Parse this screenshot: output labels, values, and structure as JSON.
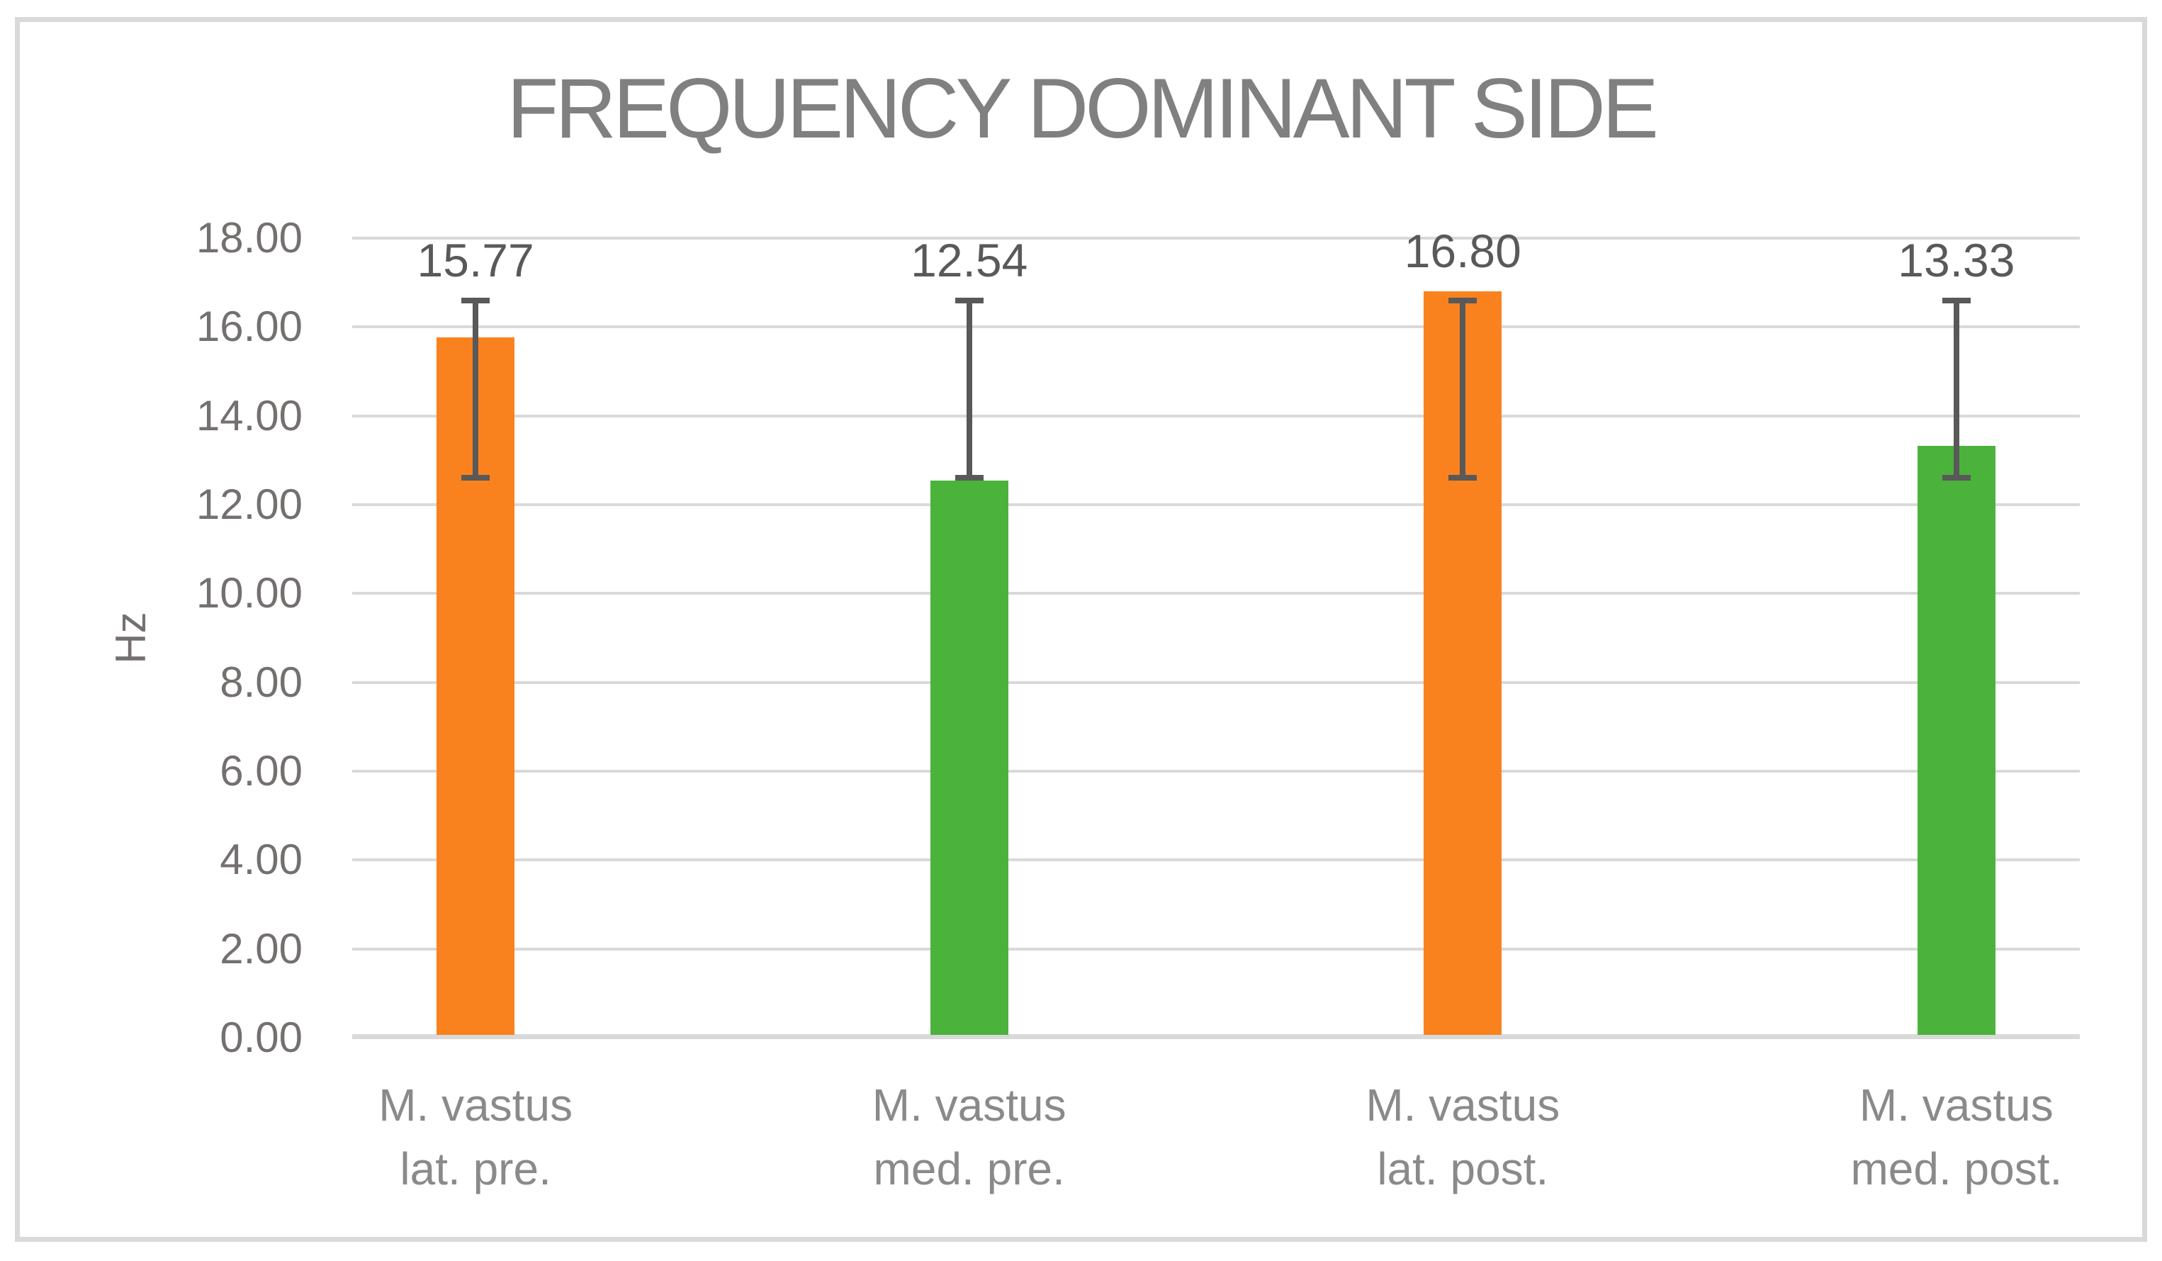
{
  "figure": {
    "background": "#FFFFFF",
    "border_color": "#D9D9D9"
  },
  "chart_data": {
    "type": "bar",
    "title": "FREQUENCY DOMINANT SIDE",
    "xlabel": "",
    "ylabel": "Hz",
    "ylim": [
      0,
      18
    ],
    "grid": true,
    "legend": false,
    "yticks": [
      {
        "v": 0,
        "label": "0.00"
      },
      {
        "v": 2,
        "label": "2.00"
      },
      {
        "v": 4,
        "label": "4.00"
      },
      {
        "v": 6,
        "label": "6.00"
      },
      {
        "v": 8,
        "label": "8.00"
      },
      {
        "v": 10,
        "label": "10.00"
      },
      {
        "v": 12,
        "label": "12.00"
      },
      {
        "v": 14,
        "label": "14.00"
      },
      {
        "v": 16,
        "label": "16.00"
      },
      {
        "v": 18,
        "label": "18.00"
      }
    ],
    "categories": [
      "M. vastus lat. pre.",
      "M. vastus med. pre.",
      "M. vastus lat. post.",
      "M. vastus med. post."
    ],
    "bars": [
      {
        "category_line1": "M. vastus",
        "category_line2": "lat. pre.",
        "value": 15.77,
        "value_label": "15.77",
        "color": "#F9821F",
        "error_top": 16.6,
        "error_bottom": 12.6
      },
      {
        "category_line1": "M. vastus",
        "category_line2": "med. pre.",
        "value": 12.54,
        "value_label": "12.54",
        "color": "#4BB23C",
        "error_top": 16.6,
        "error_bottom": 12.6
      },
      {
        "category_line1": "M. vastus",
        "category_line2": "lat. post.",
        "value": 16.8,
        "value_label": "16.80",
        "color": "#F9821F",
        "error_top": 16.6,
        "error_bottom": 12.6
      },
      {
        "category_line1": "M. vastus",
        "category_line2": "med. post.",
        "value": 13.33,
        "value_label": "13.33",
        "color": "#4BB23C",
        "error_top": 16.6,
        "error_bottom": 12.6
      }
    ],
    "colors": {
      "orange": "#F9821F",
      "green": "#4BB23C",
      "gridline": "#D9D9D9",
      "axis_line": "#D9D9D9",
      "error_bar": "#595959",
      "title": "#808080",
      "tick_label": "#757070",
      "category_label": "#8A8A8A",
      "data_label": "#595959"
    }
  }
}
